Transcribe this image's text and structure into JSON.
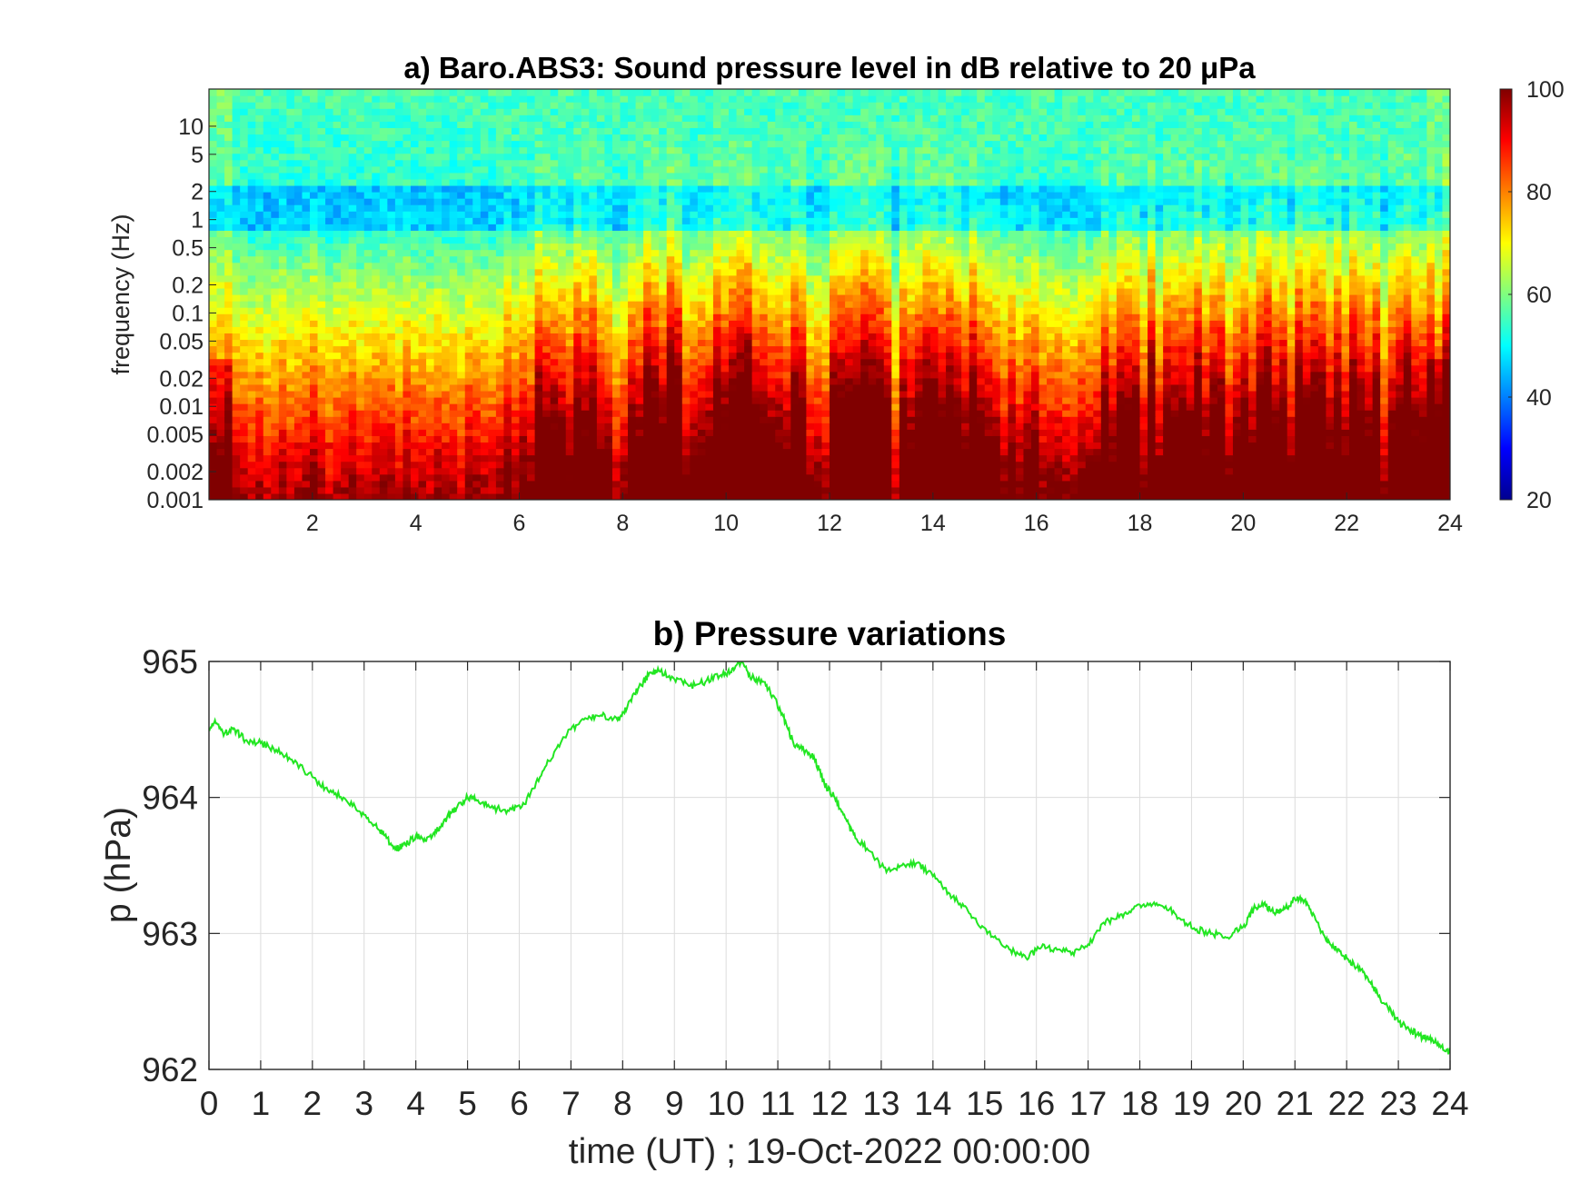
{
  "chart_data": [
    {
      "type": "heatmap",
      "title": "a) Baro.ABS3: Sound pressure level in dB relative to 20 μPa",
      "xlabel": "",
      "ylabel": "frequency (Hz)",
      "x_ticks": [
        "2",
        "4",
        "6",
        "8",
        "10",
        "12",
        "14",
        "16",
        "18",
        "20",
        "22",
        "24"
      ],
      "y_ticks": [
        "10",
        "5",
        "2",
        "1",
        "0.5",
        "0.2",
        "0.1",
        "0.05",
        "0.02",
        "0.01",
        "0.005",
        "0.002",
        "0.001"
      ],
      "y_scale": "log",
      "xlim": [
        0,
        24
      ],
      "ylim": [
        0.001,
        25
      ],
      "colorbar": {
        "ticks": [
          "20",
          "40",
          "60",
          "80",
          "100"
        ],
        "range": [
          20,
          100
        ],
        "colormap": "jet"
      },
      "grid": false
    },
    {
      "type": "line",
      "title": "b) Pressure variations",
      "xlabel": "time (UT) ; 19-Oct-2022 00:00:00",
      "ylabel": "p (hPa)",
      "x_ticks": [
        "0",
        "1",
        "2",
        "3",
        "4",
        "5",
        "6",
        "7",
        "8",
        "9",
        "10",
        "11",
        "12",
        "13",
        "14",
        "15",
        "16",
        "17",
        "18",
        "19",
        "20",
        "21",
        "22",
        "23",
        "24"
      ],
      "y_ticks": [
        "965",
        "964",
        "963",
        "962"
      ],
      "xlim": [
        0,
        24
      ],
      "ylim": [
        962,
        965
      ],
      "grid": true,
      "line_color": "#22e622",
      "series": [
        {
          "x": [
            0,
            0.1,
            0.3,
            0.5,
            0.7,
            1.0,
            1.3,
            1.6,
            2.0,
            2.3,
            2.6,
            2.9,
            3.2,
            3.4,
            3.6,
            3.8,
            4.0,
            4.2,
            4.4,
            4.6,
            4.8,
            5.0,
            5.2,
            5.5,
            5.8,
            6.1,
            6.4,
            6.7,
            7.0,
            7.3,
            7.6,
            7.9,
            8.1,
            8.3,
            8.5,
            8.7,
            9.0,
            9.3,
            9.6,
            9.9,
            10.1,
            10.3,
            10.5,
            10.7,
            10.9,
            11.1,
            11.3,
            11.5,
            11.7,
            11.9,
            12.1,
            12.3,
            12.5,
            12.8,
            13.1,
            13.4,
            13.7,
            14.0,
            14.3,
            14.6,
            14.9,
            15.2,
            15.5,
            15.8,
            16.1,
            16.4,
            16.7,
            17.0,
            17.3,
            17.6,
            17.9,
            18.2,
            18.5,
            18.8,
            19.1,
            19.4,
            19.7,
            20.0,
            20.2,
            20.4,
            20.6,
            20.8,
            21.0,
            21.2,
            21.4,
            21.6,
            21.8,
            22.0,
            22.2,
            22.4,
            22.6,
            22.8,
            23.0,
            23.2,
            23.4,
            23.6,
            23.8,
            24.0
          ],
          "y": [
            964.5,
            964.55,
            964.47,
            964.5,
            964.42,
            964.4,
            964.35,
            964.28,
            964.15,
            964.05,
            964.0,
            963.9,
            963.8,
            963.72,
            963.62,
            963.65,
            963.72,
            963.68,
            963.75,
            963.85,
            963.93,
            964.0,
            963.98,
            963.92,
            963.9,
            963.95,
            964.15,
            964.35,
            964.5,
            964.58,
            964.6,
            964.57,
            964.68,
            964.8,
            964.9,
            964.93,
            964.87,
            964.82,
            964.85,
            964.9,
            964.92,
            965.0,
            964.88,
            964.85,
            964.75,
            964.6,
            964.4,
            964.35,
            964.3,
            964.1,
            964.0,
            963.85,
            963.7,
            963.6,
            963.45,
            963.5,
            963.52,
            963.42,
            963.3,
            963.2,
            963.05,
            962.98,
            962.88,
            962.82,
            962.9,
            962.88,
            962.86,
            962.92,
            963.08,
            963.12,
            963.2,
            963.22,
            963.2,
            963.1,
            963.03,
            963.0,
            962.97,
            963.05,
            963.18,
            963.22,
            963.15,
            963.18,
            963.25,
            963.25,
            963.1,
            962.95,
            962.88,
            962.82,
            962.75,
            962.68,
            962.55,
            962.45,
            962.35,
            962.3,
            962.25,
            962.22,
            962.18,
            962.12
          ]
        }
      ]
    }
  ]
}
